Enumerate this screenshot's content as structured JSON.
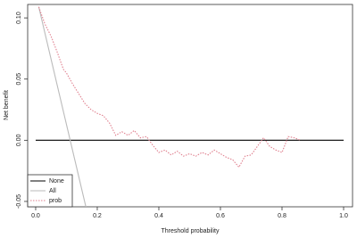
{
  "chart_data": {
    "type": "line",
    "x_label": "Threshold probability",
    "y_label": "Net benefit",
    "xlim": [
      -0.026,
      1.029
    ],
    "ylim": [
      -0.0544,
      0.111
    ],
    "xticks": [
      {
        "value": 0,
        "label": "0.0"
      },
      {
        "value": 0.2,
        "label": "0.2"
      },
      {
        "value": 0.4,
        "label": "0.4"
      },
      {
        "value": 0.6,
        "label": "0.6"
      },
      {
        "value": 0.8,
        "label": "0.8"
      },
      {
        "value": 1,
        "label": "1.0"
      }
    ],
    "yticks": [
      {
        "value": -0.05,
        "label": "-0.05"
      },
      {
        "value": 0,
        "label": "0.00"
      },
      {
        "value": 0.05,
        "label": "0.05"
      },
      {
        "value": 0.1,
        "label": "0.10"
      }
    ],
    "legend": "bottomleft",
    "series": [
      {
        "name": "None",
        "color": "#000000",
        "style": "solid",
        "x": [
          0,
          1
        ],
        "values": [
          0,
          0
        ]
      },
      {
        "name": "All",
        "color": "#bbbbbb",
        "style": "solid",
        "x": [
          0.01,
          0.163
        ],
        "values": [
          0.109,
          -0.0544
        ]
      },
      {
        "name": "prob",
        "color": "#e0808f",
        "style": "dotted",
        "x": [
          0.01,
          0.03,
          0.05,
          0.07,
          0.09,
          0.1,
          0.12,
          0.14,
          0.16,
          0.18,
          0.2,
          0.22,
          0.24,
          0.26,
          0.28,
          0.3,
          0.32,
          0.34,
          0.36,
          0.38,
          0.4,
          0.42,
          0.44,
          0.46,
          0.48,
          0.5,
          0.52,
          0.54,
          0.56,
          0.58,
          0.6,
          0.62,
          0.64,
          0.66,
          0.68,
          0.7,
          0.72,
          0.74,
          0.76,
          0.78,
          0.8,
          0.82,
          0.84,
          0.86
        ],
        "values": [
          0.109,
          0.095,
          0.085,
          0.072,
          0.058,
          0.055,
          0.046,
          0.038,
          0.03,
          0.025,
          0.022,
          0.02,
          0.014,
          0.004,
          0.007,
          0.004,
          0.008,
          0.002,
          0.003,
          -0.004,
          -0.01,
          -0.008,
          -0.012,
          -0.009,
          -0.013,
          -0.011,
          -0.013,
          -0.01,
          -0.012,
          -0.008,
          -0.011,
          -0.014,
          -0.016,
          -0.022,
          -0.013,
          -0.012,
          -0.005,
          0.002,
          -0.005,
          -0.008,
          -0.01,
          0.003,
          0.002,
          0
        ]
      }
    ]
  }
}
